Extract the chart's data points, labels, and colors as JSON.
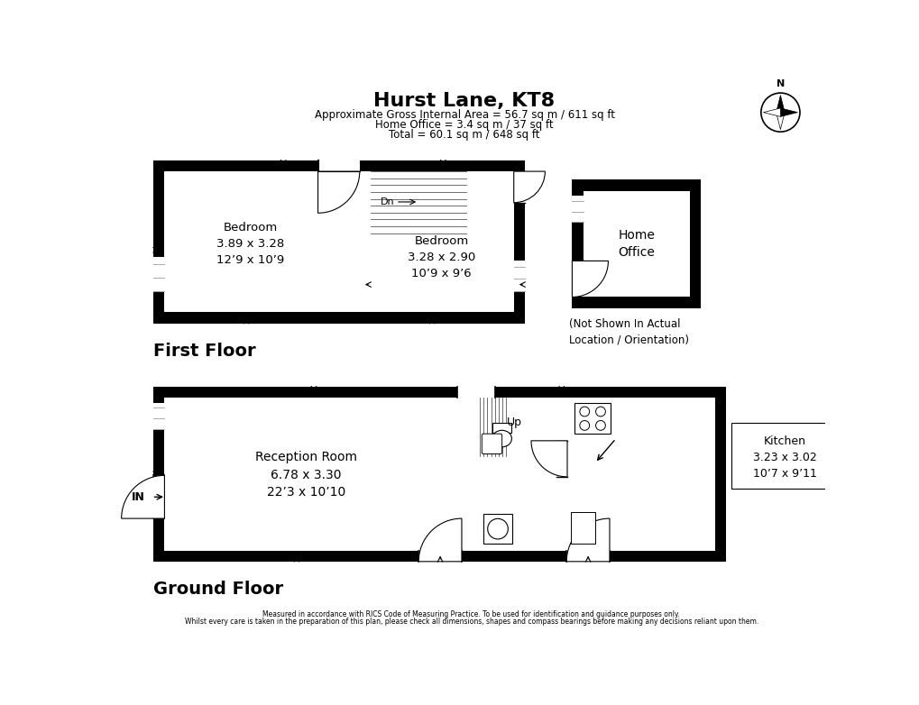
{
  "title": "Hurst Lane, KT8",
  "subtitle1": "Approximate Gross Internal Area = 56.7 sq m / 611 sq ft",
  "subtitle2": "Home Office = 3.4 sq m / 37 sq ft",
  "subtitle3": "Total = 60.1 sq m / 648 sq ft",
  "footer1": "Measured in accordance with RICS Code of Measuring Practice. To be used for identification and guidance purposes only.",
  "footer2": "Whilst every care is taken in the preparation of this plan, please check all dimensions, shapes and compass bearings before making any decisions reliant upon them.",
  "bg_color": "#ffffff",
  "first_floor_label": "First Floor",
  "ground_floor_label": "Ground Floor",
  "bedroom1_label": "Bedroom\n3.89 x 3.28\n12’9 x 10’9",
  "bedroom2_label": "Bedroom\n3.28 x 2.90\n10’9 x 9’6",
  "home_office_label": "Home\nOffice",
  "home_office_note": "(Not Shown In Actual\nLocation / Orientation)",
  "reception_label": "Reception Room\n6.78 x 3.30\n22’3 x 10’10",
  "kitchen_label": "Kitchen\n3.23 x 3.02\n10’7 x 9’11",
  "dn_label": "Dn",
  "up_label": "Up",
  "in_label": "IN"
}
